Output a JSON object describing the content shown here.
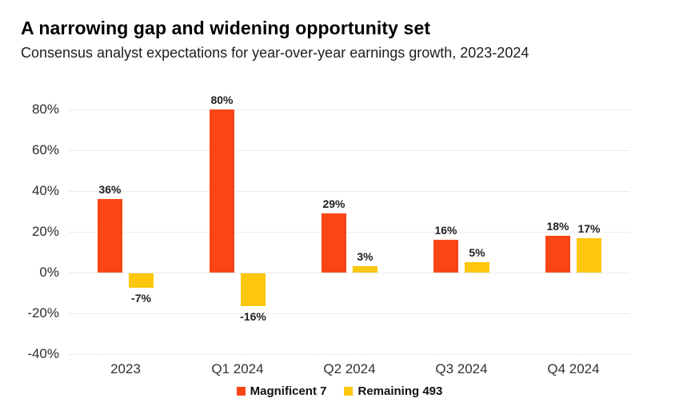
{
  "title": "A narrowing gap and widening opportunity set",
  "subtitle": "Consensus analyst expectations for year-over-year earnings growth, 2023-2024",
  "chart_data": {
    "type": "bar",
    "categories": [
      "2023",
      "Q1 2024",
      "Q2 2024",
      "Q3 2024",
      "Q4 2024"
    ],
    "series": [
      {
        "name": "Magnificent 7",
        "color": "#FA4616",
        "values": [
          36,
          80,
          29,
          16,
          18
        ]
      },
      {
        "name": "Remaining 493",
        "color": "#FCC70D",
        "values": [
          -7,
          -16,
          3,
          5,
          17
        ]
      }
    ],
    "data_labels": [
      [
        "36%",
        "80%",
        "29%",
        "16%",
        "18%"
      ],
      [
        "-7%",
        "-16%",
        "3%",
        "5%",
        "17%"
      ]
    ],
    "y_ticks": [
      80,
      60,
      40,
      20,
      0,
      -20,
      -40
    ],
    "y_tick_labels": [
      "80%",
      "60%",
      "40%",
      "20%",
      "0%",
      "-20%",
      "-40%"
    ],
    "ylim": [
      -40,
      80
    ],
    "xlabel": "",
    "ylabel": "",
    "grid": true,
    "legend_position": "bottom"
  },
  "colors": {
    "magnificent_7": "#FA4616",
    "remaining_493": "#FCC70D",
    "gridline": "#D7D7D7",
    "title_text": "#000000",
    "subtitle_text": "#1D1D1D",
    "axis_text": "#2E2E2E",
    "bar_label_text": "#1F1F1F"
  }
}
